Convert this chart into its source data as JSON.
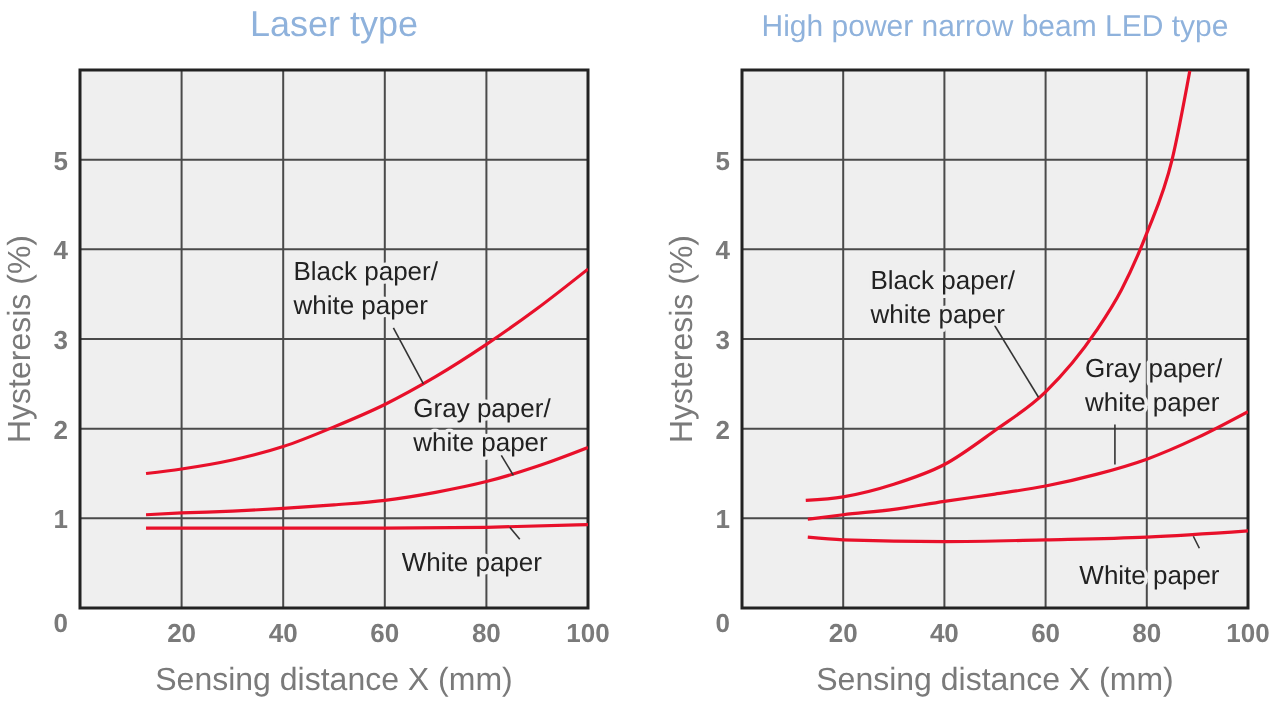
{
  "chart_data": [
    {
      "type": "line",
      "title": "Laser type",
      "xlabel": "Sensing distance X (mm)",
      "ylabel": "Hysteresis (%)",
      "xlim": [
        0,
        100
      ],
      "ylim": [
        0,
        6
      ],
      "xticks": [
        20,
        40,
        60,
        80,
        100
      ],
      "yticks": [
        0,
        1,
        2,
        3,
        4,
        5
      ],
      "grid": true,
      "marker": "none",
      "line_style": "solid",
      "series": [
        {
          "color": "#e8102a",
          "x": [
            13,
            20,
            30,
            40,
            50,
            60,
            70,
            80,
            90,
            100
          ],
          "values": [
            1.5,
            1.55,
            1.65,
            1.8,
            2.02,
            2.27,
            2.58,
            2.94,
            3.34,
            3.78
          ]
        },
        {
          "color": "#e8102a",
          "x": [
            13,
            20,
            30,
            40,
            50,
            60,
            70,
            80,
            90,
            100
          ],
          "values": [
            1.04,
            1.06,
            1.08,
            1.11,
            1.15,
            1.2,
            1.29,
            1.41,
            1.58,
            1.79
          ]
        },
        {
          "color": "#e8102a",
          "x": [
            13,
            30,
            60,
            80,
            100
          ],
          "values": [
            0.89,
            0.89,
            0.89,
            0.9,
            0.93
          ]
        }
      ],
      "annotations": [
        {
          "text": "Black paper/\nwhite paper",
          "x": 67.6,
          "y": 2.5
        },
        {
          "text": "Gray paper/\nwhite paper",
          "x": 85.3,
          "y": 1.48
        },
        {
          "text": "White paper",
          "x": 84.6,
          "y": 0.9
        }
      ]
    },
    {
      "type": "line",
      "title": "High power narrow beam LED type",
      "xlabel": "Sensing distance X (mm)",
      "ylabel": "Hysteresis (%)",
      "xlim": [
        0,
        100
      ],
      "ylim": [
        0,
        6
      ],
      "xticks": [
        20,
        40,
        60,
        80,
        100
      ],
      "yticks": [
        0,
        1,
        2,
        3,
        4,
        5
      ],
      "grid": true,
      "marker": "none",
      "line_style": "solid",
      "series": [
        {
          "color": "#e8102a",
          "x": [
            12.6,
            20,
            30,
            40,
            50,
            60,
            70,
            75,
            80,
            85,
            88.5
          ],
          "values": [
            1.2,
            1.24,
            1.38,
            1.6,
            1.98,
            2.41,
            3.09,
            3.55,
            4.18,
            5.0,
            5.99
          ]
        },
        {
          "color": "#e8102a",
          "x": [
            13,
            20,
            30,
            40,
            50,
            60,
            70,
            80,
            90,
            100
          ],
          "values": [
            0.99,
            1.04,
            1.1,
            1.19,
            1.27,
            1.36,
            1.49,
            1.66,
            1.9,
            2.19
          ]
        },
        {
          "color": "#e8102a",
          "x": [
            13,
            20,
            40,
            60,
            80,
            100
          ],
          "values": [
            0.79,
            0.76,
            0.74,
            0.76,
            0.79,
            0.86
          ]
        }
      ],
      "annotations": [
        {
          "text": "Black paper/\nwhite paper",
          "x": 58.6,
          "y": 2.35
        },
        {
          "text": "Gray paper/\nwhite paper",
          "x": 73.7,
          "y": 1.6
        },
        {
          "text": "White paper",
          "x": 89.2,
          "y": 0.8
        }
      ]
    }
  ]
}
